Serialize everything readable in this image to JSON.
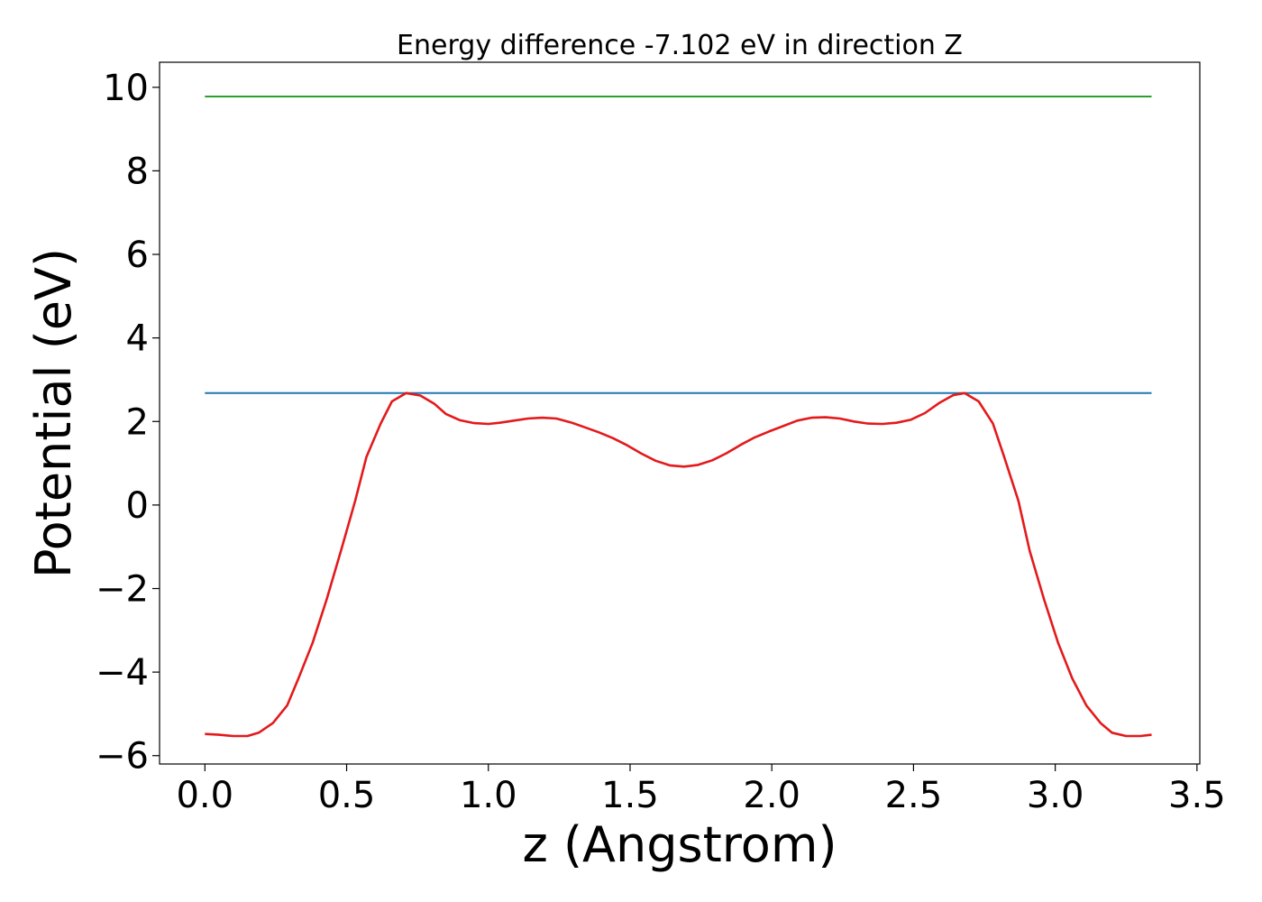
{
  "chart_data": {
    "type": "line",
    "title": "Energy difference -7.102 eV in direction Z",
    "xlabel": "z (Angstrom)",
    "ylabel": "Potential (eV)",
    "xlim": [
      -0.16,
      3.51
    ],
    "ylim": [
      -6.2,
      10.6
    ],
    "xticks": [
      0.0,
      0.5,
      1.0,
      1.5,
      2.0,
      2.5,
      3.0,
      3.5
    ],
    "xtick_labels": [
      "0.0",
      "0.5",
      "1.0",
      "1.5",
      "2.0",
      "2.5",
      "3.0",
      "3.5"
    ],
    "yticks": [
      -6,
      -4,
      -2,
      0,
      2,
      4,
      6,
      8,
      10
    ],
    "ytick_labels": [
      "−6",
      "−4",
      "−2",
      "0",
      "2",
      "4",
      "6",
      "8",
      "10"
    ],
    "grid": false,
    "series": [
      {
        "color": "#2ca02c",
        "x": [
          0.0,
          3.34
        ],
        "y": [
          9.78,
          9.78
        ]
      },
      {
        "color": "#1f77b4",
        "x": [
          0.0,
          3.34
        ],
        "y": [
          2.68,
          2.68
        ]
      },
      {
        "color": "#e31a1c",
        "x": [
          0.0,
          0.05,
          0.1,
          0.15,
          0.19,
          0.24,
          0.29,
          0.33,
          0.38,
          0.43,
          0.48,
          0.53,
          0.57,
          0.62,
          0.66,
          0.71,
          0.76,
          0.81,
          0.85,
          0.9,
          0.95,
          1.0,
          1.04,
          1.09,
          1.14,
          1.19,
          1.24,
          1.29,
          1.34,
          1.39,
          1.44,
          1.49,
          1.54,
          1.59,
          1.64,
          1.69,
          1.74,
          1.79,
          1.84,
          1.89,
          1.94,
          1.99,
          2.04,
          2.09,
          2.14,
          2.19,
          2.24,
          2.29,
          2.34,
          2.39,
          2.44,
          2.49,
          2.54,
          2.59,
          2.64,
          2.68,
          2.73,
          2.78,
          2.82,
          2.87,
          2.91,
          2.96,
          3.01,
          3.06,
          3.11,
          3.16,
          3.2,
          3.25,
          3.3,
          3.34
        ],
        "y": [
          -5.48,
          -5.5,
          -5.53,
          -5.53,
          -5.45,
          -5.22,
          -4.8,
          -4.15,
          -3.3,
          -2.25,
          -1.1,
          0.1,
          1.15,
          1.95,
          2.48,
          2.68,
          2.62,
          2.42,
          2.18,
          2.03,
          1.96,
          1.94,
          1.97,
          2.02,
          2.07,
          2.09,
          2.07,
          1.98,
          1.86,
          1.74,
          1.6,
          1.43,
          1.23,
          1.06,
          0.95,
          0.92,
          0.96,
          1.07,
          1.24,
          1.44,
          1.62,
          1.76,
          1.89,
          2.02,
          2.09,
          2.1,
          2.07,
          2.0,
          1.95,
          1.94,
          1.97,
          2.04,
          2.2,
          2.44,
          2.63,
          2.68,
          2.48,
          1.95,
          1.15,
          0.1,
          -1.1,
          -2.25,
          -3.3,
          -4.15,
          -4.8,
          -5.22,
          -5.45,
          -5.53,
          -5.53,
          -5.5
        ]
      }
    ]
  }
}
